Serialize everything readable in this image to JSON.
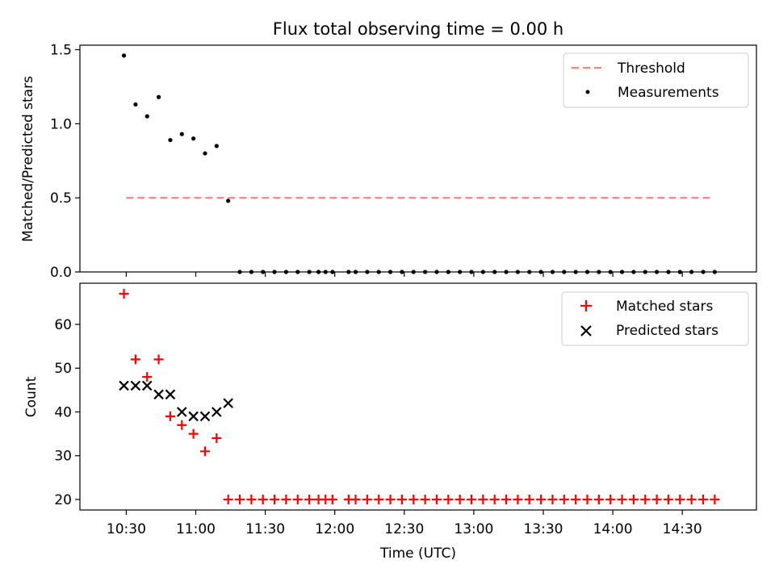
{
  "chart_data": [
    {
      "type": "scatter",
      "title": "Flux total observing time = 0.00 h",
      "xlabel": "",
      "ylabel": "Matched/Predicted stars",
      "xlim": [
        610,
        902
      ],
      "ylim": [
        0,
        1.53
      ],
      "yticks": [
        0.0,
        0.5,
        1.0,
        1.5
      ],
      "ytick_labels": [
        "0.0",
        "0.5",
        "1.0",
        "1.5"
      ],
      "xticks": [
        630,
        660,
        690,
        720,
        750,
        780,
        810,
        840,
        870
      ],
      "series": [
        {
          "name": "Threshold",
          "kind": "dashed-line",
          "color": "#ff7f7f",
          "x": [
            630,
            883
          ],
          "y": [
            0.5,
            0.5
          ]
        },
        {
          "name": "Measurements",
          "kind": "dot",
          "color": "#000000",
          "x": [
            629,
            634,
            639,
            644,
            649,
            654,
            659,
            664,
            669,
            674,
            679,
            684,
            689,
            694,
            699,
            704,
            709,
            713,
            716,
            719,
            726,
            729,
            734,
            739,
            744,
            749,
            754,
            759,
            764,
            769,
            774,
            779,
            784,
            789,
            794,
            799,
            804,
            809,
            814,
            819,
            824,
            829,
            834,
            839,
            844,
            849,
            854,
            859,
            864,
            869,
            874,
            879,
            884
          ],
          "y": [
            1.46,
            1.13,
            1.05,
            1.18,
            0.89,
            0.93,
            0.9,
            0.8,
            0.85,
            0.48,
            0,
            0,
            0,
            0,
            0,
            0,
            0,
            0,
            0,
            0,
            0,
            0,
            0,
            0,
            0,
            0,
            0,
            0,
            0,
            0,
            0,
            0,
            0,
            0,
            0,
            0,
            0,
            0,
            0,
            0,
            0,
            0,
            0,
            0,
            0,
            0,
            0,
            0,
            0,
            0,
            0,
            0,
            0
          ]
        }
      ],
      "legend_position": "top-right"
    },
    {
      "type": "scatter",
      "title": "",
      "xlabel": "Time (UTC)",
      "ylabel": "Count",
      "xlim": [
        610,
        902
      ],
      "ylim": [
        17.6,
        69.4
      ],
      "yticks": [
        20,
        30,
        40,
        50,
        60
      ],
      "ytick_labels": [
        "20",
        "30",
        "40",
        "50",
        "60"
      ],
      "xticks": [
        630,
        660,
        690,
        720,
        750,
        780,
        810,
        840,
        870
      ],
      "xtick_labels": [
        "10:30",
        "11:00",
        "11:30",
        "12:00",
        "12:30",
        "13:00",
        "13:30",
        "14:00",
        "14:30"
      ],
      "series": [
        {
          "name": "Matched stars",
          "kind": "plus",
          "color": "#ff0000",
          "x": [
            629,
            634,
            639,
            644,
            649,
            654,
            659,
            664,
            669,
            674,
            679,
            684,
            689,
            694,
            699,
            704,
            709,
            713,
            716,
            719,
            726,
            729,
            734,
            739,
            744,
            749,
            754,
            759,
            764,
            769,
            774,
            779,
            784,
            789,
            794,
            799,
            804,
            809,
            814,
            819,
            824,
            829,
            834,
            839,
            844,
            849,
            854,
            859,
            864,
            869,
            874,
            879,
            884
          ],
          "y": [
            67,
            52,
            48,
            52,
            39,
            37,
            35,
            31,
            34,
            20,
            20,
            20,
            20,
            20,
            20,
            20,
            20,
            20,
            20,
            20,
            20,
            20,
            20,
            20,
            20,
            20,
            20,
            20,
            20,
            20,
            20,
            20,
            20,
            20,
            20,
            20,
            20,
            20,
            20,
            20,
            20,
            20,
            20,
            20,
            20,
            20,
            20,
            20,
            20,
            20,
            20,
            20,
            20
          ]
        },
        {
          "name": "Predicted stars",
          "kind": "cross",
          "color": "#000000",
          "x": [
            629,
            634,
            639,
            644,
            649,
            654,
            659,
            664,
            669,
            674
          ],
          "y": [
            46,
            46,
            46,
            44,
            44,
            40,
            39,
            39,
            40,
            42
          ]
        }
      ],
      "legend_position": "top-right"
    }
  ]
}
